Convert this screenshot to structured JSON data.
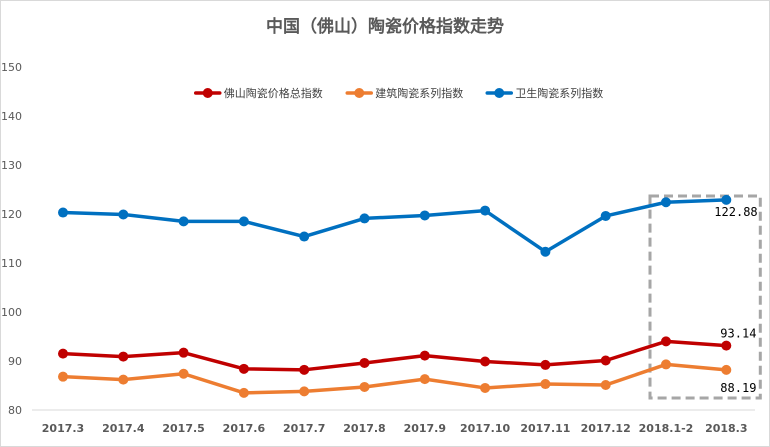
{
  "chart_data": {
    "type": "line",
    "title": "中国（佛山）陶瓷价格指数走势",
    "categories": [
      "2017.3",
      "2017.4",
      "2017.5",
      "2017.6",
      "2017.7",
      "2017.8",
      "2017.9",
      "2017.10",
      "2017.11",
      "2017.12",
      "2018.1-2",
      "2018.3"
    ],
    "ylim": [
      80,
      150
    ],
    "yticks": [
      80,
      90,
      100,
      110,
      120,
      130,
      140,
      150
    ],
    "grid": false,
    "legend_position": "top",
    "series": [
      {
        "name": "佛山陶瓷价格总指数",
        "color": "#c00000",
        "values": [
          91.5,
          90.9,
          91.7,
          88.4,
          88.2,
          89.6,
          91.1,
          89.9,
          89.2,
          90.1,
          94.0,
          93.14
        ]
      },
      {
        "name": "建筑陶瓷系列指数",
        "color": "#ed7d31",
        "values": [
          86.8,
          86.2,
          87.4,
          83.5,
          83.8,
          84.7,
          86.3,
          84.5,
          85.3,
          85.1,
          89.3,
          88.19
        ]
      },
      {
        "name": "卫生陶瓷系列指数",
        "color": "#0070c0",
        "values": [
          120.3,
          119.9,
          118.5,
          118.5,
          115.4,
          119.1,
          119.7,
          120.7,
          112.3,
          119.6,
          122.4,
          122.88
        ]
      }
    ],
    "annotations": [
      {
        "series": 2,
        "index": 11,
        "text": "122.88"
      },
      {
        "series": 0,
        "index": 11,
        "text": "93.14"
      },
      {
        "series": 1,
        "index": 11,
        "text": "88.19"
      }
    ],
    "highlight": {
      "from_index": 10,
      "to_index": 11,
      "style": "dashed-box",
      "color": "#a6a6a6"
    }
  }
}
